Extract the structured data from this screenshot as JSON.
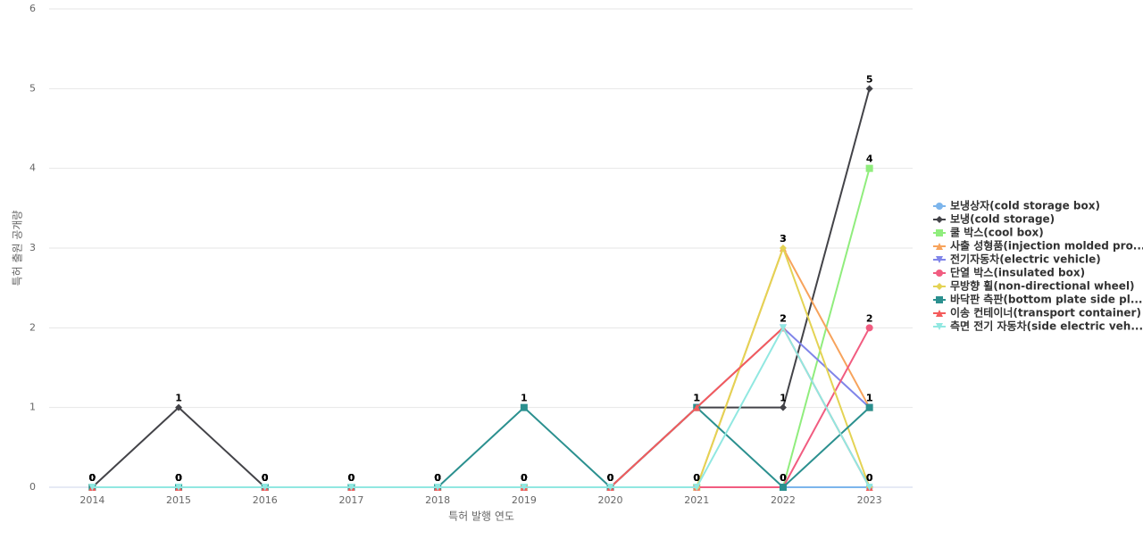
{
  "chart_data": {
    "type": "line",
    "x_label": "특허 발행 연도",
    "y_label": "특허 출원 공개량",
    "categories": [
      "2014",
      "2015",
      "2016",
      "2017",
      "2018",
      "2019",
      "2020",
      "2021",
      "2022",
      "2023"
    ],
    "ylim": [
      0,
      6
    ],
    "yticks": [
      0,
      1,
      2,
      3,
      4,
      5,
      6
    ],
    "grid": true,
    "legend": "right",
    "series": [
      {
        "name": "보냉상자(cold storage box)",
        "color": "#7cb5ec",
        "symbol": "circle",
        "values": [
          0,
          0,
          0,
          0,
          0,
          0,
          0,
          0,
          0,
          0
        ]
      },
      {
        "name": "보냉(cold storage)",
        "color": "#434348",
        "symbol": "diamond",
        "values": [
          0,
          1,
          0,
          0,
          0,
          0,
          0,
          1,
          1,
          5
        ]
      },
      {
        "name": "쿨 박스(cool box)",
        "color": "#90ed7d",
        "symbol": "square",
        "values": [
          0,
          0,
          0,
          0,
          0,
          0,
          0,
          0,
          0,
          4
        ]
      },
      {
        "name": "사출 성형품(injection molded pro...",
        "color": "#f7a35c",
        "symbol": "triangle",
        "values": [
          0,
          0,
          0,
          0,
          0,
          0,
          0,
          0,
          3,
          1
        ]
      },
      {
        "name": "전기자동차(electric vehicle)",
        "color": "#8085e9",
        "symbol": "triangle-down",
        "values": [
          0,
          0,
          0,
          0,
          0,
          0,
          0,
          1,
          2,
          1
        ]
      },
      {
        "name": "단열 박스(insulated box)",
        "color": "#f15c80",
        "symbol": "circle",
        "values": [
          0,
          0,
          0,
          0,
          0,
          0,
          0,
          0,
          0,
          2
        ]
      },
      {
        "name": "무방향 휠(non-directional wheel)",
        "color": "#e4d354",
        "symbol": "diamond",
        "values": [
          0,
          0,
          0,
          0,
          0,
          0,
          0,
          0,
          3,
          0
        ]
      },
      {
        "name": "바닥판 측판(bottom plate side pl...",
        "color": "#2b908f",
        "symbol": "square",
        "values": [
          0,
          0,
          0,
          0,
          0,
          1,
          0,
          1,
          0,
          1
        ]
      },
      {
        "name": "이송 컨테이너(transport container)",
        "color": "#f45b5b",
        "symbol": "triangle",
        "values": [
          0,
          0,
          0,
          0,
          0,
          0,
          0,
          1,
          2,
          0
        ]
      },
      {
        "name": "측면 전기 자동차(side electric veh...",
        "color": "#91e8e1",
        "symbol": "triangle-down",
        "values": [
          0,
          0,
          0,
          0,
          0,
          0,
          0,
          0,
          2,
          0
        ]
      }
    ]
  }
}
